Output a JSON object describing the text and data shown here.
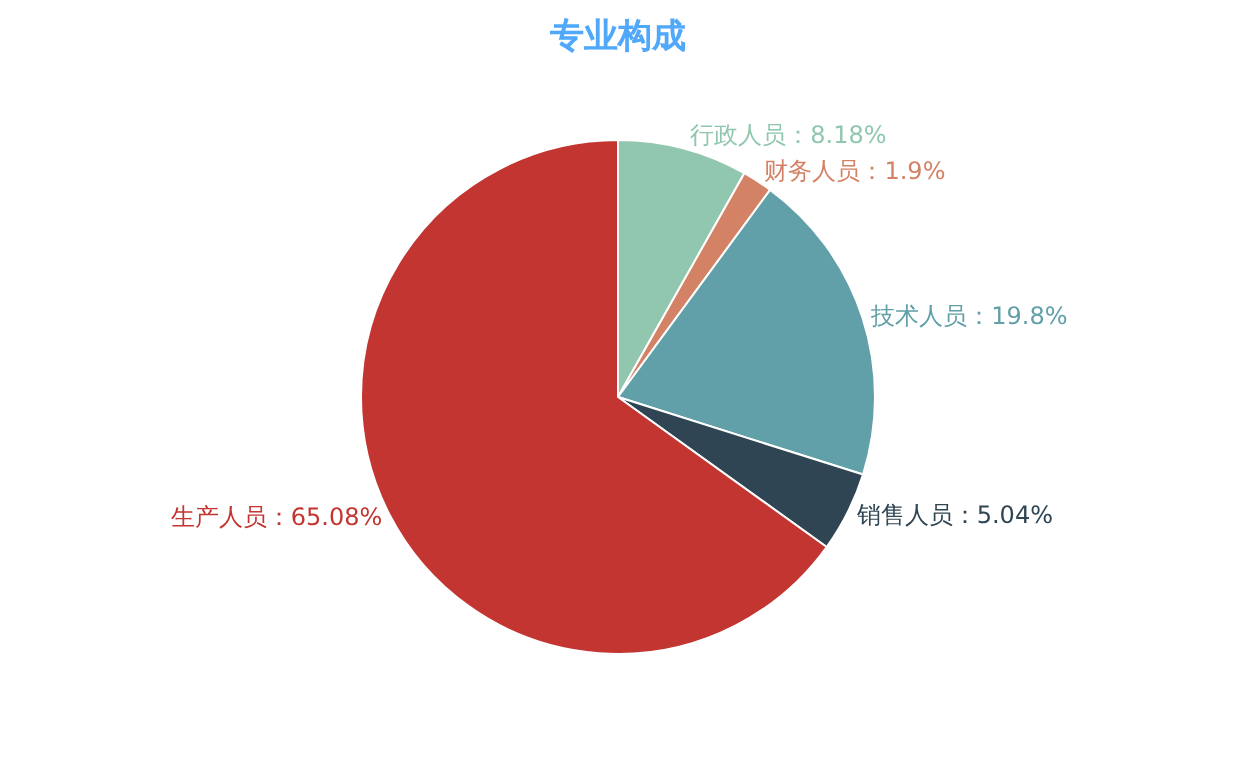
{
  "chart_data": {
    "type": "pie",
    "title": "专业构成",
    "categories": [
      "行政人员",
      "财务人员",
      "技术人员",
      "销售人员",
      "生产人员"
    ],
    "values": [
      8.18,
      1.9,
      19.8,
      5.04,
      65.08
    ],
    "colors": [
      "#91c7ae",
      "#d48265",
      "#61a0a8",
      "#2f4554",
      "#c23531"
    ],
    "value_labels": [
      "8.18%",
      "1.9%",
      "19.8%",
      "5.04%",
      "65.08%"
    ],
    "legend": false
  }
}
